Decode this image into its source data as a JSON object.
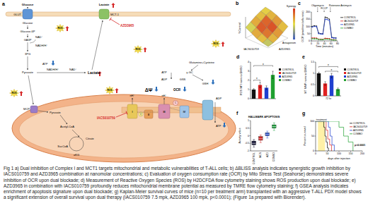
{
  "diagram": {
    "letter": "a",
    "labels": [
      "Glucose",
      "Lactate",
      "GLUT",
      "MCT-1",
      "AZD3965",
      "Glucose",
      "Glucose-6P",
      "GA3P",
      "NAD⁺",
      "NADH/H⁺",
      "3PG",
      "ATP",
      "Pyruvate",
      "NADH/H⁺",
      "NAD⁺",
      "Lactate",
      "Glutamine+Cysteine",
      "ATP",
      "ADP",
      "γ-GC",
      "GSS",
      "GSH",
      "ΔΨ",
      "OCR",
      "nH⁺",
      "nH⁺",
      "ADP",
      "ATP",
      "MCP",
      "Pyruvate",
      "IACS010759",
      "Acetyl-CoA",
      "Citrate",
      "αKG",
      "SucCoA",
      "I",
      "II",
      "III",
      "IV",
      "Q",
      "C"
    ],
    "ros": [
      "ROS",
      "ROS",
      "ROS",
      "ROS",
      "ROS"
    ]
  },
  "chart_data": [
    {
      "letter": "b",
      "type": "surface",
      "zlabel": "%Control",
      "xlabel": "IACS010759",
      "ylabel": "AZD3965",
      "zlim": [
        0,
        100
      ],
      "z": [
        [
          100,
          95,
          85,
          70,
          55
        ],
        [
          92,
          85,
          70,
          52,
          38
        ],
        [
          80,
          68,
          50,
          35,
          22
        ],
        [
          65,
          50,
          33,
          20,
          12
        ],
        [
          50,
          36,
          20,
          12,
          6
        ]
      ],
      "synergy": [
        [
          2,
          5,
          8,
          4
        ],
        [
          4,
          14,
          16,
          8
        ],
        [
          6,
          15,
          12,
          5
        ],
        [
          -2,
          6,
          4,
          -4
        ]
      ],
      "colorbar_range": [
        -20,
        20
      ],
      "synergy_label": "Synergy",
      "antagonism_label": "Antagonism"
    },
    {
      "letter": "c",
      "type": "line",
      "xlabel": "Time (minutes)",
      "ylabel": "OCR (pmol/min/cells ratio)",
      "x": [
        2,
        9,
        16,
        22,
        29,
        35,
        42,
        48,
        55,
        62,
        68,
        75
      ],
      "xlim": [
        0,
        80
      ],
      "xticks": [
        0,
        20,
        40,
        60,
        80
      ],
      "ylim": [
        0,
        200
      ],
      "yticks": [
        0,
        50,
        100,
        150,
        200
      ],
      "series": [
        {
          "name": "CONTROL",
          "color": "#111111",
          "values": [
            100,
            105,
            102,
            55,
            50,
            48,
            165,
            160,
            150,
            25,
            22,
            20
          ]
        },
        {
          "name": "IACS010759",
          "color": "#e02020",
          "values": [
            20,
            20,
            19,
            12,
            12,
            11,
            18,
            17,
            16,
            8,
            8,
            7
          ]
        },
        {
          "name": "AZD3965",
          "color": "#2040d0",
          "values": [
            95,
            100,
            98,
            50,
            48,
            47,
            150,
            148,
            140,
            22,
            20,
            19
          ]
        },
        {
          "name": "COMBO",
          "color": "#20a030",
          "values": [
            15,
            14,
            14,
            10,
            9,
            9,
            12,
            12,
            11,
            7,
            6,
            6
          ]
        }
      ],
      "annotations": [
        {
          "text": "Oligomycin",
          "x": 19
        },
        {
          "text": "FCCP",
          "x": 39
        },
        {
          "text": "Rotenone Antimycin",
          "x": 58
        }
      ],
      "marker": "circle",
      "legend": "right"
    },
    {
      "letter": "d",
      "type": "bar",
      "ylabel": "ROS MFI norm to DMSO",
      "categories": [
        "CONTROL",
        "IACS010759",
        "AZD3965",
        "COMBO"
      ],
      "values": [
        1,
        1.5,
        1.2,
        2.6
      ],
      "errors": [
        0.1,
        0.3,
        0.2,
        0.4
      ],
      "colors": [
        "#111111",
        "#e02020",
        "#2040d0",
        "#20a030"
      ],
      "ylim": [
        0,
        4
      ],
      "yticks": [
        0,
        1,
        2,
        3,
        4
      ],
      "tick_labels": "y",
      "legend": "right",
      "significance": [
        {
          "label": "*",
          "from": 0,
          "to": 1
        },
        {
          "label": "*",
          "from": 0,
          "to": 3
        }
      ]
    },
    {
      "letter": "e",
      "type": "bar",
      "ylabel": "MT MMP norm to DMSO",
      "categories": [
        "CONTROL",
        "IACS010759",
        "AZD3965",
        "COMBO"
      ],
      "values": [
        1,
        0.55,
        0.9,
        0.3
      ],
      "errors": [
        0.05,
        0.08,
        0.1,
        0.05
      ],
      "colors": [
        "#111111",
        "#e02020",
        "#2040d0",
        "#20a030"
      ],
      "ylim": [
        0,
        1.5
      ],
      "yticks": [
        0,
        0.5,
        1,
        1.5
      ],
      "tick_labels": "y",
      "legend": "right",
      "annotations": [
        {
          "text": "72 hr"
        }
      ],
      "significance": [
        {
          "label": "*",
          "from": 1,
          "to": 3
        },
        {
          "label": "*",
          "from": 0,
          "to": 3
        }
      ]
    },
    {
      "letter": "f",
      "type": "box",
      "title": "HALLMARK APOPTOSIS",
      "ylabel": "Activity value",
      "categories": [
        "CONTROL",
        "IACS",
        "AZD",
        "COMBO"
      ],
      "boxes": [
        {
          "min": -0.75,
          "q1": -0.6,
          "median": -0.5,
          "q3": -0.35,
          "max": -0.25
        },
        {
          "min": -0.45,
          "q1": -0.3,
          "median": -0.2,
          "q3": -0.05,
          "max": 0.05
        },
        {
          "min": -0.15,
          "q1": 0,
          "median": 0.1,
          "q3": 0.2,
          "max": 0.3
        },
        {
          "min": 0.35,
          "q1": 0.5,
          "median": 0.6,
          "q3": 0.72,
          "max": 0.85
        }
      ],
      "colors": [
        "#1a1a3a",
        "#d02828",
        "#2a50c8",
        "#20a040"
      ],
      "ylim": [
        -1,
        1
      ],
      "yticks": [
        -1,
        -0.5,
        0,
        0.5,
        1
      ]
    },
    {
      "letter": "g",
      "type": "step",
      "xlabel": "days after injection",
      "ylabel": "Percent survival",
      "xlim": [
        0,
        200
      ],
      "xticks": [
        0,
        50,
        100,
        150,
        200
      ],
      "ylim": [
        0,
        100
      ],
      "yticks": [
        0,
        50,
        100
      ],
      "series": [
        {
          "name": "CONTROL",
          "color": "#111111",
          "x": [
            0,
            35,
            40,
            45,
            50,
            55
          ],
          "values": [
            100,
            80,
            50,
            30,
            10,
            0
          ]
        },
        {
          "name": "IACS010759",
          "color": "#e02020",
          "x": [
            0,
            45,
            52,
            60,
            68
          ],
          "values": [
            100,
            70,
            40,
            20,
            0
          ]
        },
        {
          "name": "AZD3965",
          "color": "#2040d0",
          "x": [
            0,
            55,
            62,
            70,
            80
          ],
          "values": [
            100,
            80,
            50,
            20,
            0
          ]
        },
        {
          "name": "COMBO",
          "color": "#20a030",
          "x": [
            0,
            100,
            120,
            140,
            160
          ],
          "values": [
            100,
            80,
            50,
            30,
            0
          ]
        }
      ],
      "annotations": [
        {
          "text": "treatment",
          "from": 10,
          "to": 40
        },
        {
          "text": "p<0.0001"
        }
      ],
      "legend": "upper right"
    }
  ],
  "caption": "Fig 1 a) Dual inhibition of Complex I and MCT1 targets mitochondrial and metabolic vulnerabilities of T-ALL cells; b) ΔBLISS analysis indicates synergistic growth inhibition by IACS010759 and AZD3965 combination at nanomolar concentrations; c) Evaluation of oxygen consumption rate (OCR) by Mito Stress Test (Seahorse) demonstrates severe inhibition of OCR upon dual blockade; d) Measurement of Reactive Oxygen Species (ROS) by H2DCFDA flow cytometry staining shows ROS production upon dual blockade; e) AZD3965 in combination with IACS010759 profoundly reduces mitochondrial membrane potential as measured by TMRE flow cytometry staining; f) GSEA analysis indicates enrichment of apoptosis signature upon dual blockade; g) Kaplan-Meier survival curves of mice (n=10 per treatment arm) transplanted with an aggressive T-ALL PDX model shows a significant extension of overall survival upon dual therapy (IACS010759 7.5 mpk, AZD3965 100 mpk, p<0.0001); (Figure 1a prepared with Biorender)."
}
